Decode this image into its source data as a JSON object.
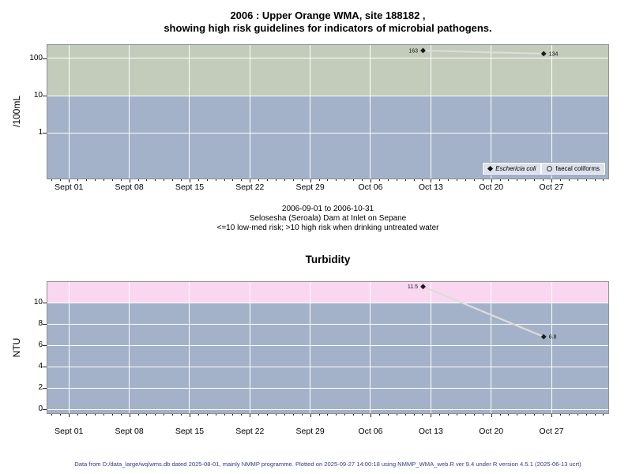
{
  "page": {
    "title_line1": "2006 : Upper Orange WMA, site 188182 ,",
    "title_line2": "showing high risk guidelines for indicators of microbial pathogens.",
    "footer": "Data from D:/data_large/wq/wms.db dated 2025-08-01, mainly NMMP programme. Plotted on 2025-09-27 14:00:18 using NMMP_WMA_web.R ver 9.4 under R version 4.5.1 (2025-06-13 ucrt)"
  },
  "caption": {
    "date_range": "2006-09-01 to 2006-10-31",
    "site": "Selosesha (Seroala) Dam at Inlet on Sepane",
    "risk_note": "<=10 low-med risk; >10 high risk when drinking untreated water"
  },
  "chart_data": [
    {
      "type": "line",
      "title": "",
      "ylabel": "/100mL",
      "yscale": "log",
      "yticks": [
        1,
        10,
        100
      ],
      "ylim_log10": [
        -1.23,
        2.36
      ],
      "x_unit": "days since 2006-09-01",
      "xlim": [
        -2.5,
        62.6
      ],
      "xticks": [
        0,
        7,
        14,
        21,
        28,
        35,
        42,
        49,
        56
      ],
      "xtick_labels": [
        "Sept 01",
        "Sept 08",
        "Sept 15",
        "Sept 22",
        "Sept 29",
        "Oct 06",
        "Oct 13",
        "Oct 20",
        "Oct 27"
      ],
      "grid": true,
      "grid_color": "#ffffff",
      "line_color": "#dcdcdc",
      "marker_color": "#1a1a1a",
      "zones": [
        {
          "label": "high risk (>10)",
          "from": 10,
          "to": 230,
          "color": "#c3ccba"
        },
        {
          "label": "low-med risk (<=10)",
          "from": 0.059,
          "to": 10,
          "color": "#a3b2c9"
        }
      ],
      "series": [
        {
          "name": "Eschericia coli",
          "marker": "diamond-filled",
          "x": [
            41.1,
            55.1
          ],
          "values": [
            163,
            134
          ],
          "point_labels": [
            "163",
            "134"
          ],
          "label_side": [
            "left",
            "right"
          ]
        },
        {
          "name": "faecal coliforms",
          "marker": "circle-open",
          "x": [],
          "values": [],
          "point_labels": [],
          "label_side": []
        }
      ],
      "legend": {
        "position": "bottom-right",
        "entries": [
          {
            "label": "Eschericia coli",
            "marker": "diamond-filled",
            "italic": true
          },
          {
            "label": "faecal coliforms",
            "marker": "circle-open",
            "italic": false
          }
        ]
      }
    },
    {
      "type": "line",
      "title": "Turbidity",
      "ylabel": "NTU",
      "yscale": "linear",
      "yticks": [
        0,
        2,
        4,
        6,
        8,
        10
      ],
      "ylim": [
        -0.37,
        11.93
      ],
      "x_unit": "days since 2006-09-01",
      "xlim": [
        -2.5,
        62.6
      ],
      "xticks": [
        0,
        7,
        14,
        21,
        28,
        35,
        42,
        49,
        56
      ],
      "xtick_labels": [
        "Sept 01",
        "Sept 08",
        "Sept 15",
        "Sept 22",
        "Sept 29",
        "Oct 06",
        "Oct 13",
        "Oct 20",
        "Oct 27"
      ],
      "grid": true,
      "grid_color": "#ffffff",
      "line_color": "#dcdcdc",
      "marker_color": "#1a1a1a",
      "zones": [
        {
          "label": "high risk (>10)",
          "from": 10,
          "to": 11.93,
          "color": "#fad7f0"
        },
        {
          "label": "low-med risk (<=10)",
          "from": -0.37,
          "to": 10,
          "color": "#a3b2c9"
        }
      ],
      "series": [
        {
          "name": "Turbidity",
          "marker": "diamond-filled",
          "x": [
            41.1,
            55.1
          ],
          "values": [
            11.5,
            6.8
          ],
          "point_labels": [
            "11.5",
            "6.8"
          ],
          "label_side": [
            "left",
            "right"
          ]
        }
      ],
      "legend": null
    }
  ]
}
